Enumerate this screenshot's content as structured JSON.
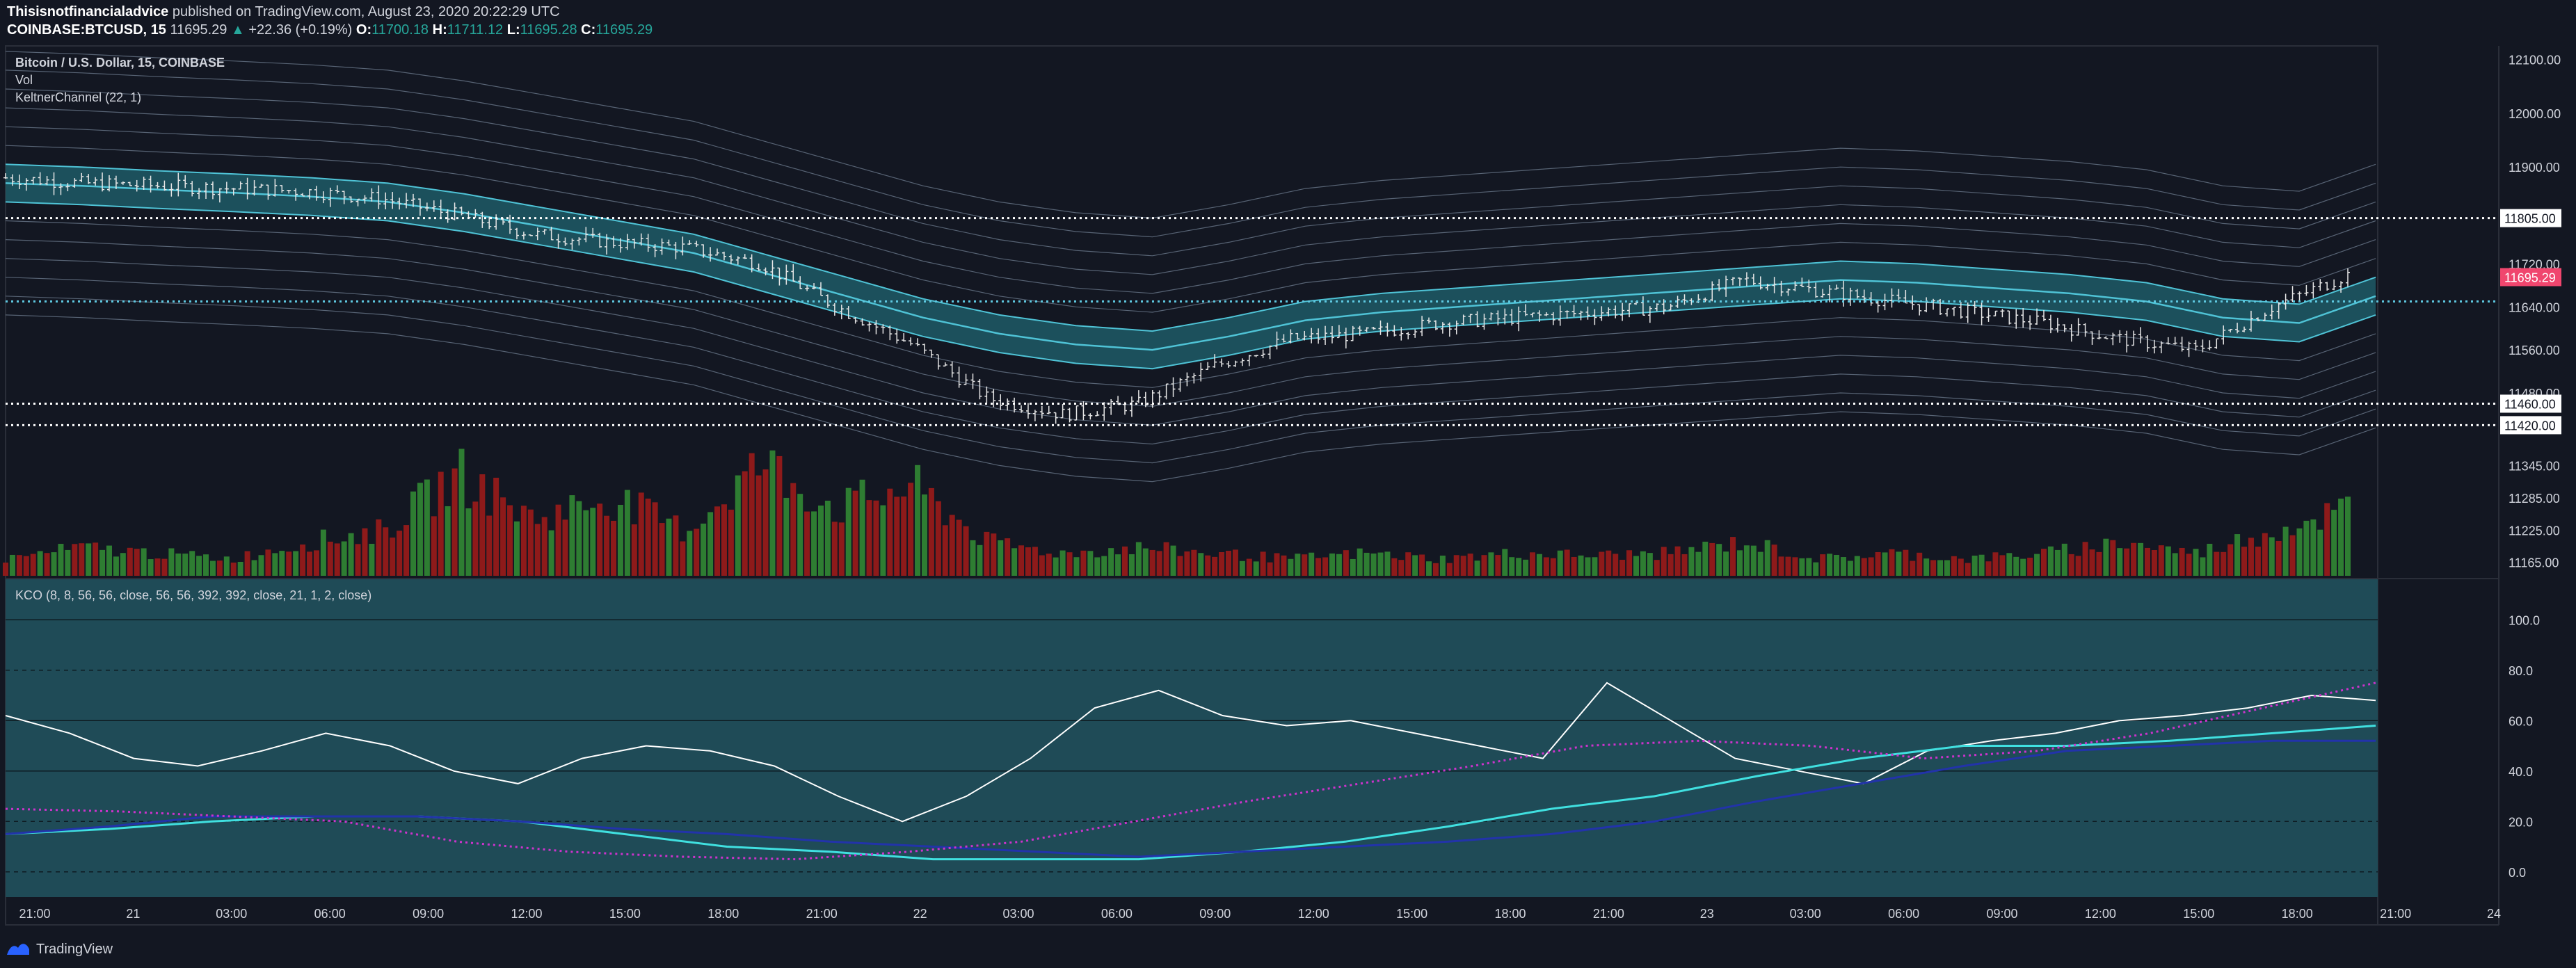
{
  "header": {
    "author": "Thisisnotfinancialadvice",
    "published_text": "published on TradingView.com, August 23, 2020 20:22:29 UTC",
    "symbol": "COINBASE:BTCUSD, 15",
    "last": "11695.29",
    "change": "+22.36 (+0.19%)",
    "o_label": "O:",
    "o_value": "11700.18",
    "h_label": "H:",
    "h_value": "11711.12",
    "l_label": "L:",
    "l_value": "11695.28",
    "c_label": "C:",
    "c_value": "11695.29"
  },
  "legend": {
    "title": "Bitcoin / U.S. Dollar, 15, COINBASE",
    "vol": "Vol",
    "keltner": "KeltnerChannel (22, 1)",
    "kco": "KCO (8, 8, 56, 56, close, 56, 56, 392, 392, close, 21, 1, 2, close)"
  },
  "footer": {
    "brand": "TradingView",
    "brand_icon": "tradingview-logo-icon"
  },
  "colors": {
    "background": "#131722",
    "kco_panel": "#1f4b57",
    "keltner_fill": "#1e5a66",
    "keltner_line": "#4fc3d6",
    "band_line": "#8fa3b8",
    "volume_up": "#2e7d32",
    "volume_down": "#8e1a1a",
    "last_price_badge": "#f0466e",
    "cyan": "#40e0e0",
    "blue": "#2233aa",
    "magenta": "#cc33cc",
    "red_dotted": "#e0304a"
  },
  "chart_data": [
    {
      "type": "line",
      "title": "Bitcoin / U.S. Dollar, 15, COINBASE",
      "y_ticks": [
        "12100.00",
        "12000.00",
        "11900.00",
        "11805.00",
        "11720.00",
        "11640.00",
        "11560.00",
        "11480.00",
        "11460.00",
        "11420.00",
        "11345.00",
        "11285.00",
        "11225.00",
        "11165.00"
      ],
      "ylim": [
        11140,
        12120
      ],
      "horizontal_levels": [
        {
          "value": 11805,
          "label": "11805.00",
          "style": "white-dotted"
        },
        {
          "value": 11650,
          "label": "",
          "style": "cyan-dotted"
        },
        {
          "value": 11460,
          "label": "11460.00",
          "style": "white-dotted"
        },
        {
          "value": 11420,
          "label": "11420.00",
          "style": "white-dotted"
        }
      ],
      "last_price": {
        "value": 11695.29,
        "label": "11695.29"
      },
      "x_ticks": [
        "21:00",
        "21",
        "03:00",
        "06:00",
        "09:00",
        "12:00",
        "15:00",
        "18:00",
        "21:00",
        "22",
        "03:00",
        "06:00",
        "09:00",
        "12:00",
        "15:00",
        "18:00",
        "21:00",
        "23",
        "03:00",
        "06:00",
        "09:00",
        "12:00",
        "15:00",
        "18:00",
        "21:00",
        "24"
      ],
      "keltner_middle": [
        11870,
        11865,
        11858,
        11852,
        11845,
        11835,
        11815,
        11790,
        11765,
        11740,
        11700,
        11660,
        11620,
        11590,
        11570,
        11560,
        11585,
        11615,
        11630,
        11640,
        11650,
        11660,
        11670,
        11680,
        11690,
        11685,
        11675,
        11665,
        11650,
        11620,
        11610,
        11660
      ],
      "price_close": [
        11880,
        11870,
        11865,
        11860,
        11855,
        11840,
        11810,
        11775,
        11760,
        11750,
        11720,
        11640,
        11570,
        11470,
        11440,
        11460,
        11530,
        11580,
        11590,
        11610,
        11620,
        11630,
        11640,
        11690,
        11670,
        11650,
        11630,
        11610,
        11580,
        11560,
        11640,
        11700
      ],
      "volume_relative": [
        0.15,
        0.25,
        0.2,
        0.15,
        0.3,
        0.4,
        0.9,
        0.5,
        0.7,
        0.4,
        1.0,
        0.6,
        0.8,
        0.3,
        0.2,
        0.25,
        0.2,
        0.15,
        0.2,
        0.15,
        0.2,
        0.18,
        0.2,
        0.3,
        0.15,
        0.2,
        0.15,
        0.2,
        0.3,
        0.2,
        0.4,
        0.6
      ]
    },
    {
      "type": "line",
      "title": "KCO (8, 8, 56, 56, close, 56, 56, 392, 392, close, 21, 1, 2, close)",
      "y_ticks": [
        "100.0",
        "80.0",
        "60.0",
        "40.0",
        "20.0",
        "0.0"
      ],
      "ylim": [
        -10,
        110
      ],
      "series": [
        {
          "name": "",
          "color": "#ffffff",
          "values": [
            62,
            55,
            45,
            42,
            48,
            55,
            50,
            40,
            35,
            45,
            50,
            48,
            42,
            30,
            20,
            30,
            45,
            65,
            72,
            62,
            58,
            60,
            55,
            50,
            45,
            75,
            60,
            45,
            40,
            35,
            48,
            52,
            55,
            60,
            62,
            65,
            70,
            68
          ]
        },
        {
          "name": "",
          "color": "#40e0e0",
          "values": [
            15,
            17,
            20,
            22,
            22,
            20,
            15,
            10,
            8,
            5,
            5,
            5,
            8,
            12,
            18,
            25,
            30,
            38,
            45,
            50,
            50,
            52,
            55,
            58
          ]
        },
        {
          "name": "",
          "color": "#2233aa",
          "values": [
            15,
            18,
            22,
            22,
            22,
            20,
            17,
            15,
            12,
            10,
            8,
            6,
            8,
            10,
            12,
            15,
            20,
            28,
            35,
            42,
            48,
            50,
            52,
            52
          ]
        },
        {
          "name": "",
          "color": "#cc33cc",
          "values": [
            25,
            24,
            22,
            20,
            12,
            8,
            6,
            5,
            8,
            12,
            20,
            28,
            35,
            42,
            50,
            52,
            50,
            45,
            48,
            55,
            65,
            75
          ]
        }
      ]
    }
  ]
}
